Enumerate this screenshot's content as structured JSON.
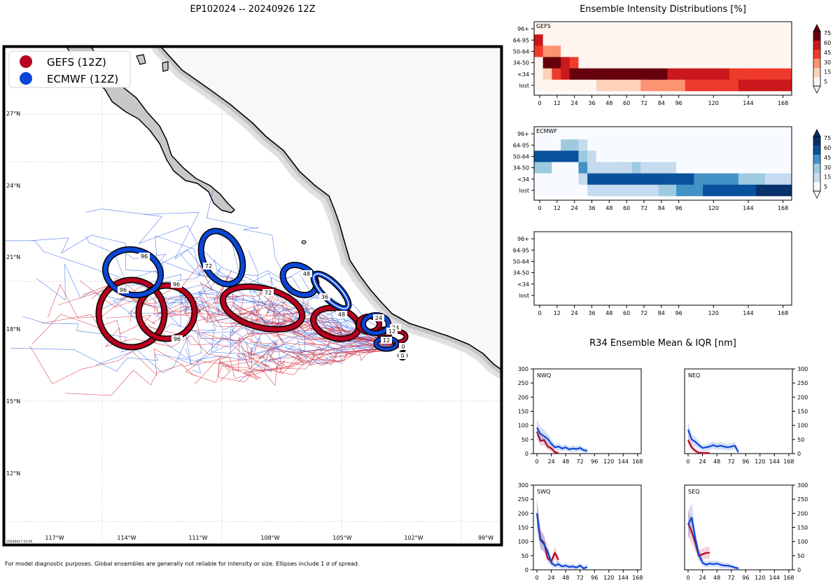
{
  "map": {
    "title": "EP102024 -- 20240926 12Z",
    "legend": [
      {
        "label": "GEFS (12Z)",
        "color": "#b8001f"
      },
      {
        "label": "ECMWF (12Z)",
        "color": "#0b46d6"
      }
    ],
    "lat_labels": [
      "27°N",
      "24°N",
      "21°N",
      "18°N",
      "15°N",
      "12°N"
    ],
    "lon_labels": [
      "117°W",
      "114°W",
      "111°W",
      "108°W",
      "105°W",
      "102°W",
      "99°W"
    ],
    "stamp": "20240927 02:00",
    "footnote": "For model diagnostic purposes. Global ensembles are generally not reliable for intensity or size. Ellipses include 1 σ of spread.",
    "ellipse_labels": {
      "gefs": [
        "96",
        "96",
        "96",
        "72",
        "48",
        "24",
        "12",
        "0"
      ],
      "ecmwf": [
        "96",
        "72",
        "48",
        "36",
        "24",
        "12",
        "0"
      ]
    }
  },
  "intensity": {
    "title": "Ensemble Intensity Distributions [%]",
    "row_labels": [
      "96+",
      "64-95",
      "50-64",
      "34-50",
      "<34",
      "lost"
    ],
    "x_ticks": [
      0,
      12,
      24,
      36,
      48,
      60,
      72,
      84,
      96,
      120,
      144,
      168
    ],
    "panels": [
      {
        "name": "GEFS",
        "scheme": "red",
        "rows": [
          [
            0,
            0,
            0,
            0,
            0,
            0,
            0,
            0,
            0,
            0,
            0,
            0,
            0,
            0,
            0,
            0,
            0,
            0,
            0,
            0,
            0,
            0,
            0,
            0,
            0,
            0,
            0,
            0,
            0
          ],
          [
            68,
            0,
            0,
            0,
            0,
            0,
            0,
            0,
            0,
            0,
            0,
            0,
            0,
            0,
            0,
            0,
            0,
            0,
            0,
            0,
            0,
            0,
            0,
            0,
            0,
            0,
            0,
            0,
            0
          ],
          [
            45,
            15,
            15,
            0,
            0,
            0,
            0,
            0,
            0,
            0,
            0,
            0,
            0,
            0,
            0,
            0,
            0,
            0,
            0,
            0,
            0,
            0,
            0,
            0,
            0,
            0,
            0,
            0,
            0
          ],
          [
            0,
            77,
            77,
            55,
            35,
            0,
            0,
            0,
            0,
            0,
            0,
            0,
            0,
            0,
            0,
            0,
            0,
            0,
            0,
            0,
            0,
            0,
            0,
            0,
            0,
            0,
            0,
            0,
            0
          ],
          [
            0,
            5,
            35,
            58,
            80,
            80,
            80,
            80,
            80,
            80,
            80,
            80,
            80,
            80,
            80,
            65,
            65,
            65,
            65,
            55,
            55,
            55,
            45,
            45,
            45,
            45,
            45,
            45,
            30
          ],
          [
            0,
            0,
            0,
            0,
            0,
            0,
            0,
            5,
            5,
            5,
            5,
            5,
            20,
            20,
            20,
            20,
            20,
            30,
            30,
            40,
            40,
            40,
            40,
            58,
            58,
            58,
            58,
            58,
            58
          ]
        ]
      },
      {
        "name": "ECMWF",
        "scheme": "blue",
        "rows": [
          [
            0,
            0,
            0,
            0,
            0,
            0,
            0,
            0,
            0,
            0,
            0,
            0,
            0,
            0,
            0,
            0,
            0,
            0,
            0,
            0,
            0,
            0,
            0,
            0,
            0,
            0,
            0,
            0,
            0
          ],
          [
            0,
            0,
            0,
            20,
            20,
            10,
            0,
            0,
            0,
            0,
            0,
            0,
            0,
            0,
            0,
            0,
            0,
            0,
            0,
            0,
            0,
            0,
            0,
            0,
            0,
            0,
            0,
            0,
            0
          ],
          [
            62,
            62,
            62,
            62,
            62,
            20,
            10,
            0,
            0,
            0,
            0,
            0,
            0,
            0,
            0,
            0,
            0,
            0,
            0,
            0,
            0,
            0,
            0,
            0,
            0,
            0,
            0,
            0,
            0
          ],
          [
            20,
            20,
            0,
            0,
            0,
            45,
            5,
            5,
            5,
            5,
            5,
            15,
            5,
            5,
            5,
            5,
            0,
            0,
            0,
            0,
            0,
            0,
            0,
            0,
            0,
            0,
            0,
            0,
            0
          ],
          [
            0,
            0,
            0,
            0,
            0,
            5,
            62,
            62,
            62,
            62,
            62,
            62,
            62,
            62,
            62,
            62,
            62,
            62,
            45,
            45,
            35,
            35,
            35,
            15,
            15,
            15,
            5,
            5,
            5
          ],
          [
            0,
            0,
            0,
            0,
            0,
            0,
            5,
            5,
            5,
            5,
            5,
            5,
            5,
            5,
            15,
            15,
            30,
            30,
            40,
            55,
            55,
            55,
            55,
            62,
            62,
            70,
            70,
            70,
            70
          ]
        ]
      },
      {
        "name": "",
        "scheme": "none",
        "rows": []
      }
    ],
    "colorbar_ticks": [
      5,
      15,
      30,
      45,
      60,
      75
    ]
  },
  "chart_data": {
    "type": "line",
    "title": "R34 Ensemble Mean & IQR [nm]",
    "x_ticks": [
      0,
      24,
      48,
      72,
      96,
      120,
      144,
      168
    ],
    "ylim": [
      0,
      300
    ],
    "y_ticks": [
      0,
      50,
      100,
      150,
      200,
      250,
      300
    ],
    "panels": [
      {
        "name": "NWQ",
        "series": [
          {
            "color": "#b8001f",
            "x": [
              0,
              6,
              12,
              18,
              24,
              30,
              36
            ],
            "y": [
              78,
              45,
              48,
              25,
              18,
              5,
              2
            ]
          },
          {
            "color": "#0b46d6",
            "x": [
              0,
              6,
              12,
              18,
              24,
              30,
              36,
              42,
              48,
              54,
              60,
              66,
              72,
              78,
              84
            ],
            "y": [
              92,
              70,
              62,
              52,
              35,
              22,
              25,
              18,
              22,
              15,
              18,
              16,
              20,
              12,
              10
            ]
          }
        ]
      },
      {
        "name": "NEQ",
        "series": [
          {
            "color": "#b8001f",
            "x": [
              0,
              6,
              12,
              18,
              24,
              30,
              36
            ],
            "y": [
              48,
              22,
              10,
              3,
              2,
              2,
              2
            ]
          },
          {
            "color": "#0b46d6",
            "x": [
              0,
              6,
              12,
              18,
              24,
              30,
              36,
              42,
              48,
              54,
              60,
              66,
              72,
              78,
              84
            ],
            "y": [
              85,
              50,
              42,
              30,
              20,
              22,
              25,
              30,
              25,
              28,
              25,
              22,
              25,
              28,
              5
            ]
          }
        ]
      },
      {
        "name": "SWQ",
        "series": [
          {
            "color": "#b8001f",
            "x": [
              0,
              6,
              12,
              18,
              24,
              30,
              36
            ],
            "y": [
              200,
              110,
              95,
              40,
              30,
              60,
              35
            ]
          },
          {
            "color": "#0b46d6",
            "x": [
              0,
              6,
              12,
              18,
              24,
              30,
              36,
              42,
              48,
              54,
              60,
              66,
              72,
              78,
              84
            ],
            "y": [
              200,
              105,
              90,
              65,
              25,
              15,
              20,
              12,
              15,
              10,
              12,
              8,
              15,
              5,
              10
            ]
          }
        ]
      },
      {
        "name": "SEQ",
        "series": [
          {
            "color": "#b8001f",
            "x": [
              0,
              6,
              12,
              18,
              24,
              30,
              36
            ],
            "y": [
              165,
              135,
              95,
              50,
              55,
              60,
              60
            ]
          },
          {
            "color": "#0b46d6",
            "x": [
              0,
              6,
              12,
              18,
              24,
              30,
              36,
              42,
              48,
              54,
              60,
              66,
              72,
              78,
              84
            ],
            "y": [
              160,
              185,
              110,
              55,
              25,
              18,
              22,
              20,
              22,
              18,
              15,
              15,
              12,
              8,
              5
            ]
          }
        ]
      }
    ]
  }
}
